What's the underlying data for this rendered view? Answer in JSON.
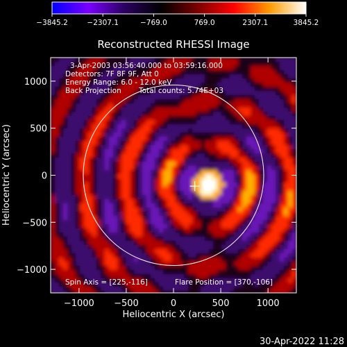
{
  "chart_data": {
    "type": "heatmap",
    "title": "Reconstructed RHESSI Image",
    "xlabel": "Heliocentric X (arcsec)",
    "ylabel": "Heliocentric Y (arcsec)",
    "xlim": [
      -1300,
      1300
    ],
    "ylim": [
      -1250,
      1250
    ],
    "xticks": [
      -1000,
      -500,
      0,
      500,
      1000
    ],
    "yticks": [
      -1000,
      -500,
      0,
      500,
      1000
    ],
    "colorbar": {
      "range": [
        -3845.2,
        3845.2
      ],
      "tick_labels": [
        "−3845.2",
        "−2307.1",
        "−769.0",
        "769.0",
        "2307.1",
        "3845.2"
      ],
      "colors": [
        "#0000ff",
        "#7a00ff",
        "#2a0060",
        "#000000",
        "#7a0000",
        "#ff0000",
        "#ff9c00",
        "#ffffff"
      ]
    },
    "annotations": {
      "time_range": "3-Apr-2003 03:56:40.000 to 03:59:16.000",
      "detectors": "Detectors: 7F 8F 9F, Att 0",
      "energy": "Energy Range: 6.0 - 12.0 keV",
      "method": "Back Projection",
      "counts": "Total counts: 5.74E+03",
      "spin_axis": "Spin Axis = [225,-116]",
      "flare_position": "Flare Position = [370,-106]"
    },
    "spin_axis": [
      225,
      -116
    ],
    "flare_position": [
      370,
      -106
    ],
    "solar_limb_radius_arcsec": 955,
    "peak_source_value": 3845.2
  },
  "footer": {
    "timestamp": "30-Apr-2022 11:28"
  }
}
